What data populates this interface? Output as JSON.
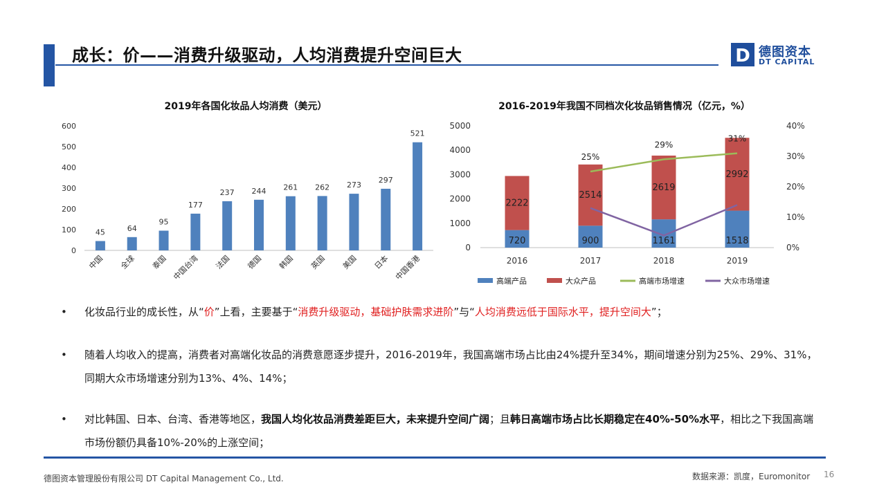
{
  "header": {
    "title": "成长：价——消费升级驱动，人均消费提升空间巨大",
    "logo_cn": "德图资本",
    "logo_en": "DT CAPITAL",
    "logo_mark": "D"
  },
  "chart_data": [
    {
      "type": "bar",
      "title": "2019年各国化妆品人均消费（美元）",
      "categories": [
        "中国",
        "全球",
        "泰国",
        "中国台湾",
        "法国",
        "德国",
        "韩国",
        "英国",
        "美国",
        "日本",
        "中国香港"
      ],
      "values": [
        45,
        64,
        95,
        177,
        237,
        244,
        261,
        262,
        273,
        297,
        521
      ],
      "ylim": [
        0,
        600
      ],
      "yticks": [
        0,
        100,
        200,
        300,
        400,
        500,
        600
      ],
      "ytick_labels": [
        "0",
        "100",
        "200",
        "300",
        "400",
        "500",
        "600"
      ],
      "color": "#4f81bd",
      "grid": false
    },
    {
      "type": "bar",
      "stacked": true,
      "title": "2016-2019年我国不同档次化妆品销售情况（亿元，%）",
      "categories": [
        "2016",
        "2017",
        "2018",
        "2019"
      ],
      "series": [
        {
          "name": "高端产品",
          "type": "bar",
          "values": [
            720,
            900,
            1161,
            1518
          ],
          "color": "#4f81bd"
        },
        {
          "name": "大众产品",
          "type": "bar",
          "values": [
            2222,
            2514,
            2619,
            2992
          ],
          "color": "#c0504d"
        },
        {
          "name": "高端市场增速",
          "type": "line",
          "axis": "right",
          "values": [
            null,
            25,
            29,
            31
          ],
          "labels": [
            "",
            "25%",
            "29%",
            "31%"
          ],
          "color": "#9bbb59"
        },
        {
          "name": "大众市场增速",
          "type": "line",
          "axis": "right",
          "values": [
            null,
            13,
            4,
            14
          ],
          "color": "#8064a2"
        }
      ],
      "ylim": [
        0,
        5000
      ],
      "yticks": [
        0,
        1000,
        2000,
        3000,
        4000,
        5000
      ],
      "ytick_labels": [
        "0",
        "1000",
        "2000",
        "3000",
        "4000",
        "5000"
      ],
      "y2lim": [
        0,
        40
      ],
      "y2ticks": [
        0,
        10,
        20,
        30,
        40
      ],
      "y2tick_labels": [
        "0%",
        "10%",
        "20%",
        "30%",
        "40%"
      ],
      "legend": "bottom",
      "grid": false
    }
  ],
  "bullets": [
    {
      "parts": [
        {
          "t": "化妆品行业的成长性，从“",
          "s": ""
        },
        {
          "t": "价",
          "s": "red"
        },
        {
          "t": "”上看，主要基于“",
          "s": ""
        },
        {
          "t": "消费升级驱动，基础护肤需求进阶",
          "s": "red"
        },
        {
          "t": "”与“",
          "s": ""
        },
        {
          "t": "人均消费远低于国际水平，提升空间大",
          "s": "red"
        },
        {
          "t": "”；",
          "s": ""
        }
      ]
    },
    {
      "parts": [
        {
          "t": "随着人均收入的提高，消费者对高端化妆品的消费意愿逐步提升，2016-2019年，我国高端市场占比由24%提升至34%，期间增速分别为25%、29%、31%，同期大众市场增速分别为13%、4%、14%；",
          "s": ""
        }
      ]
    },
    {
      "parts": [
        {
          "t": "对比韩国、日本、台湾、香港等地区，",
          "s": ""
        },
        {
          "t": "我国人均化妆品消费差距巨大，未来提升空间广阔",
          "s": "b"
        },
        {
          "t": "；且",
          "s": ""
        },
        {
          "t": "韩日高端市场占比长期稳定在40%-50%水平",
          "s": "b"
        },
        {
          "t": "，相比之下我国高端市场份额仍具备10%-20%的上涨空间；",
          "s": ""
        }
      ]
    }
  ],
  "bullet_symbol": "•",
  "footer": {
    "company": "德图资本管理股份有限公司  DT Capital Management Co., Ltd.",
    "source": "数据来源：凯度，Euromonitor",
    "page": "16"
  }
}
